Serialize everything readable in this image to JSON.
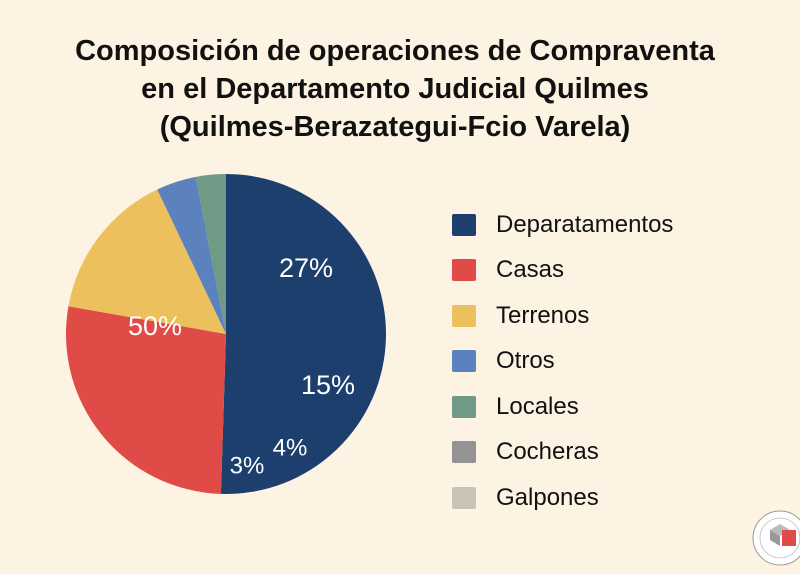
{
  "chart_data": {
    "type": "pie",
    "title": [
      "Composición de operaciones de Compraventa",
      "en el Departamento Judicial Quilmes",
      "(Quilmes-Berazategui-Fcio Varela)"
    ],
    "start": "top",
    "direction": "clockwise",
    "slices": [
      {
        "name": "Departamentos",
        "value": 50,
        "label": "50%",
        "color": "#1c3f6e"
      },
      {
        "name": "Casas",
        "value": 27,
        "label": "27%",
        "color": "#e04b47"
      },
      {
        "name": "Terrenos",
        "value": 15,
        "label": "15%",
        "color": "#ecc05d"
      },
      {
        "name": "Otros",
        "value": 4,
        "label": "4%",
        "color": "#5b82bd"
      },
      {
        "name": "Locales",
        "value": 3,
        "label": "3%",
        "color": "#6f9a85"
      }
    ],
    "legend": {
      "placement": "right",
      "entries": [
        {
          "label": "Deparatamentos",
          "color": "#1c3f6e"
        },
        {
          "label": "Casas",
          "color": "#e04b47"
        },
        {
          "label": "Terrenos",
          "color": "#ecc05d"
        },
        {
          "label": "Otros",
          "color": "#5b82bd"
        },
        {
          "label": "Locales",
          "color": "#6f9a85"
        },
        {
          "label": "Cocheras",
          "color": "#939393"
        },
        {
          "label": "Galpones",
          "color": "#c9c2b6"
        }
      ]
    }
  },
  "logo": {
    "text": "COLEGIO DE MARTILLEROS Y CORREDORES PÚBLICOS DEL DPTO. JUDICIAL QUILMES - LEY 10973"
  }
}
